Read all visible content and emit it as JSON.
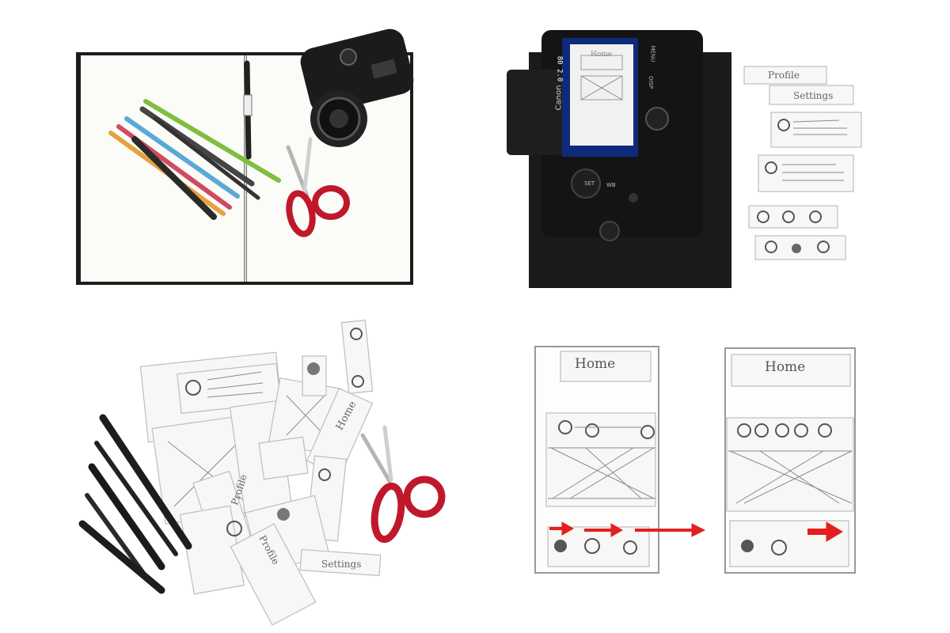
{
  "labels": {
    "home": "Home",
    "profile": "Profile",
    "settings": "Settings"
  },
  "camera": {
    "brand": "Canon",
    "screen_title": "Home",
    "screen_left": "80  2.0",
    "btn_set": "SET",
    "btn_wb": "WB",
    "btn_menu": "MENU",
    "btn_disp": "DISP"
  },
  "colors": {
    "arrow": "#e41f1f",
    "scissors": "#c0182b",
    "mat": "#1a1a1a"
  }
}
